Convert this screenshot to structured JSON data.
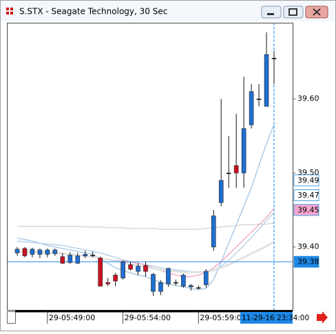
{
  "chart_data": {
    "type": "candlestick",
    "title": "S.STX - Seagate Technology, 30 Sec",
    "categories": [
      null,
      null,
      null,
      null,
      "29-05:49:00",
      null,
      null,
      null,
      null,
      null,
      null,
      null,
      null,
      null,
      "29-05:54:00",
      null,
      null,
      null,
      null,
      null,
      null,
      null,
      null,
      null,
      "29-05:59:00",
      null,
      null,
      null,
      null,
      null,
      null,
      null,
      null,
      null,
      null
    ],
    "open": [
      39.392,
      39.398,
      39.39,
      39.39,
      39.39,
      39.391,
      39.387,
      39.379,
      39.378,
      39.388,
      39.389,
      39.385,
      39.352,
      39.362,
      39.358,
      39.376,
      39.367,
      39.375,
      39.34,
      39.34,
      39.35,
      39.352,
      39.347,
      39.346,
      39.345,
      39.349,
      39.4,
      39.46,
      39.5,
      39.51,
      39.5,
      39.565,
      39.6,
      39.59,
      39.655
    ],
    "high": [
      39.4,
      39.4,
      39.399,
      39.398,
      39.398,
      39.398,
      39.392,
      39.393,
      39.392,
      39.395,
      39.394,
      39.387,
      39.358,
      39.365,
      39.382,
      39.38,
      39.378,
      39.38,
      39.365,
      39.355,
      39.372,
      39.356,
      39.364,
      39.35,
      39.348,
      39.37,
      39.45,
      39.6,
      39.55,
      39.58,
      39.63,
      39.62,
      39.62,
      39.69,
      39.665
    ],
    "low": [
      39.388,
      39.386,
      39.386,
      39.385,
      39.386,
      39.388,
      39.377,
      39.377,
      39.377,
      39.385,
      39.386,
      39.347,
      39.347,
      39.347,
      39.356,
      39.368,
      39.362,
      39.36,
      39.334,
      39.335,
      39.346,
      39.348,
      39.345,
      39.341,
      39.343,
      39.345,
      39.395,
      39.455,
      39.48,
      39.48,
      39.48,
      39.56,
      39.59,
      39.59,
      39.62
    ],
    "close": [
      39.397,
      39.388,
      39.397,
      39.396,
      39.396,
      39.396,
      39.378,
      39.389,
      39.388,
      39.39,
      39.389,
      39.347,
      39.35,
      39.354,
      39.38,
      39.37,
      39.374,
      39.367,
      39.363,
      39.352,
      39.371,
      39.352,
      39.362,
      39.348,
      39.345,
      39.367,
      39.442,
      39.49,
      39.5,
      39.5,
      39.56,
      39.61,
      39.6,
      39.66,
      39.655
    ],
    "up_color": "#1f6fd1",
    "down_color": "#cc1122",
    "lines": [
      {
        "color": "#a9cbe8",
        "width": 1.5,
        "values": [
          39.412,
          39.41,
          39.408,
          39.405,
          39.402,
          39.4,
          39.398,
          39.396,
          39.394,
          39.392,
          39.39,
          39.384,
          39.378,
          39.372,
          39.368,
          39.365,
          39.362,
          39.36,
          39.356,
          39.352,
          39.35,
          39.348,
          39.346,
          39.344,
          39.342,
          39.344,
          39.356,
          39.38,
          39.405,
          39.43,
          39.455,
          39.48,
          39.51,
          39.54,
          39.565
        ]
      },
      {
        "color": "#b9d3ea",
        "width": 1.5,
        "values": [
          39.408,
          39.407,
          39.406,
          39.405,
          39.404,
          39.403,
          39.402,
          39.4,
          39.398,
          39.396,
          39.394,
          39.392,
          39.389,
          39.386,
          39.383,
          39.38,
          39.378,
          39.376,
          39.374,
          39.372,
          39.37,
          39.369,
          39.368,
          39.367,
          39.366,
          39.366,
          39.368,
          39.374,
          39.382,
          39.392,
          39.402,
          39.413,
          39.424,
          39.436,
          39.446
        ]
      },
      {
        "color": "#f29ac6",
        "width": 1.2,
        "values": [
          null,
          null,
          null,
          null,
          null,
          null,
          null,
          null,
          null,
          null,
          null,
          null,
          null,
          39.382,
          39.381,
          39.38,
          39.378,
          39.376,
          39.372,
          39.368,
          39.365,
          39.362,
          39.36,
          39.36,
          39.362,
          39.366,
          39.372,
          39.38,
          39.39,
          39.4,
          39.41,
          39.42,
          39.43,
          39.44,
          39.452
        ]
      },
      {
        "color": "#e2e2e2",
        "width": 3,
        "values": [
          39.394,
          39.394,
          39.393,
          39.393,
          39.392,
          39.392,
          39.391,
          39.39,
          39.389,
          39.388,
          39.387,
          39.385,
          39.383,
          39.381,
          39.379,
          39.377,
          39.375,
          39.373,
          39.371,
          39.369,
          39.368,
          39.367,
          39.366,
          39.366,
          39.366,
          39.367,
          39.369,
          39.372,
          39.376,
          39.381,
          39.386,
          39.391,
          39.396,
          39.401,
          39.407
        ]
      },
      {
        "color": "#c8c8c8",
        "width": 1,
        "values": [
          39.428,
          39.428,
          39.428,
          39.428,
          39.428,
          39.428,
          39.428,
          39.428,
          39.428,
          39.427,
          39.427,
          39.427,
          39.426,
          39.426,
          39.426,
          39.425,
          39.425,
          39.425,
          39.425,
          39.424,
          39.424,
          39.424,
          39.424,
          39.424,
          39.424,
          39.425,
          39.426,
          39.427,
          39.428,
          39.429,
          39.43,
          39.43,
          39.431,
          39.431,
          39.432
        ]
      }
    ],
    "ylim": [
      39.315,
      39.703
    ],
    "yticks": [
      {
        "value": 39.6,
        "label": "39.60"
      },
      {
        "value": 39.5,
        "label": "39.50"
      },
      {
        "value": 39.4,
        "label": "39.40"
      }
    ],
    "markers": [
      {
        "value": 39.49,
        "color": "#ffffff"
      },
      {
        "value": 39.47,
        "color": "#ffffff"
      },
      {
        "value": 39.45,
        "color": "#f7a6cf"
      },
      {
        "value": 39.38,
        "color": "#1e88e5"
      }
    ],
    "cursor": {
      "label": "11-29-16 23:34:00",
      "price": 39.38,
      "color": "#1e88e5"
    }
  }
}
